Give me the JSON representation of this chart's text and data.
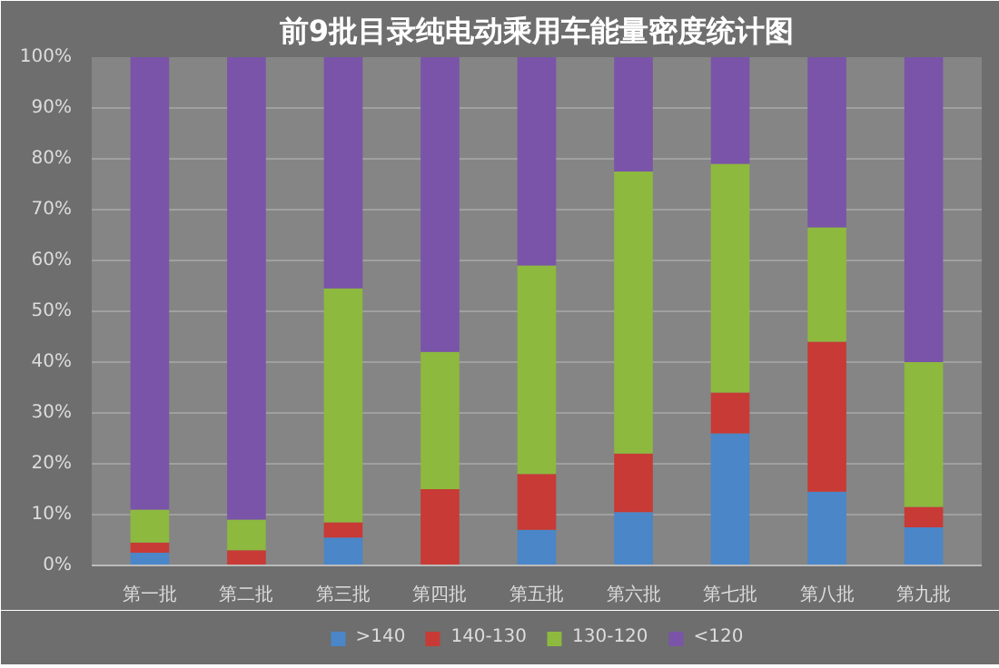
{
  "chart_data": {
    "type": "bar",
    "title": "前9批目录纯电动乘用车能量密度统计图",
    "stacked": true,
    "categories": [
      "第一批",
      "第二批",
      "第三批",
      "第四批",
      "第五批",
      "第六批",
      "第七批",
      "第八批",
      "第九批"
    ],
    "series": [
      {
        "name": ">140",
        "color": "#4a86c8",
        "values": [
          2.5,
          0,
          5.5,
          0,
          7,
          10.5,
          26,
          14.5,
          7.5
        ]
      },
      {
        "name": "140-130",
        "color": "#c83a35",
        "values": [
          2,
          3,
          3,
          15,
          11,
          11.5,
          8,
          29.5,
          4
        ]
      },
      {
        "name": "130-120",
        "color": "#8db93e",
        "values": [
          6.5,
          6,
          46,
          27,
          41,
          55.5,
          45,
          22.5,
          28.5
        ]
      },
      {
        "name": "<120",
        "color": "#7a54a8",
        "values": [
          89,
          91,
          45.5,
          58,
          41,
          22.5,
          21,
          33.5,
          60
        ]
      }
    ],
    "ylim": [
      0,
      100
    ],
    "yticks": [
      {
        "value": 0,
        "label": "0%"
      },
      {
        "value": 10,
        "label": "10%"
      },
      {
        "value": 20,
        "label": "20%"
      },
      {
        "value": 30,
        "label": "30%"
      },
      {
        "value": 40,
        "label": "40%"
      },
      {
        "value": 50,
        "label": "50%"
      },
      {
        "value": 60,
        "label": "60%"
      },
      {
        "value": 70,
        "label": "70%"
      },
      {
        "value": 80,
        "label": "80%"
      },
      {
        "value": 90,
        "label": "90%"
      },
      {
        "value": 100,
        "label": "100%"
      }
    ],
    "grid": "y",
    "legend": "bottom"
  }
}
